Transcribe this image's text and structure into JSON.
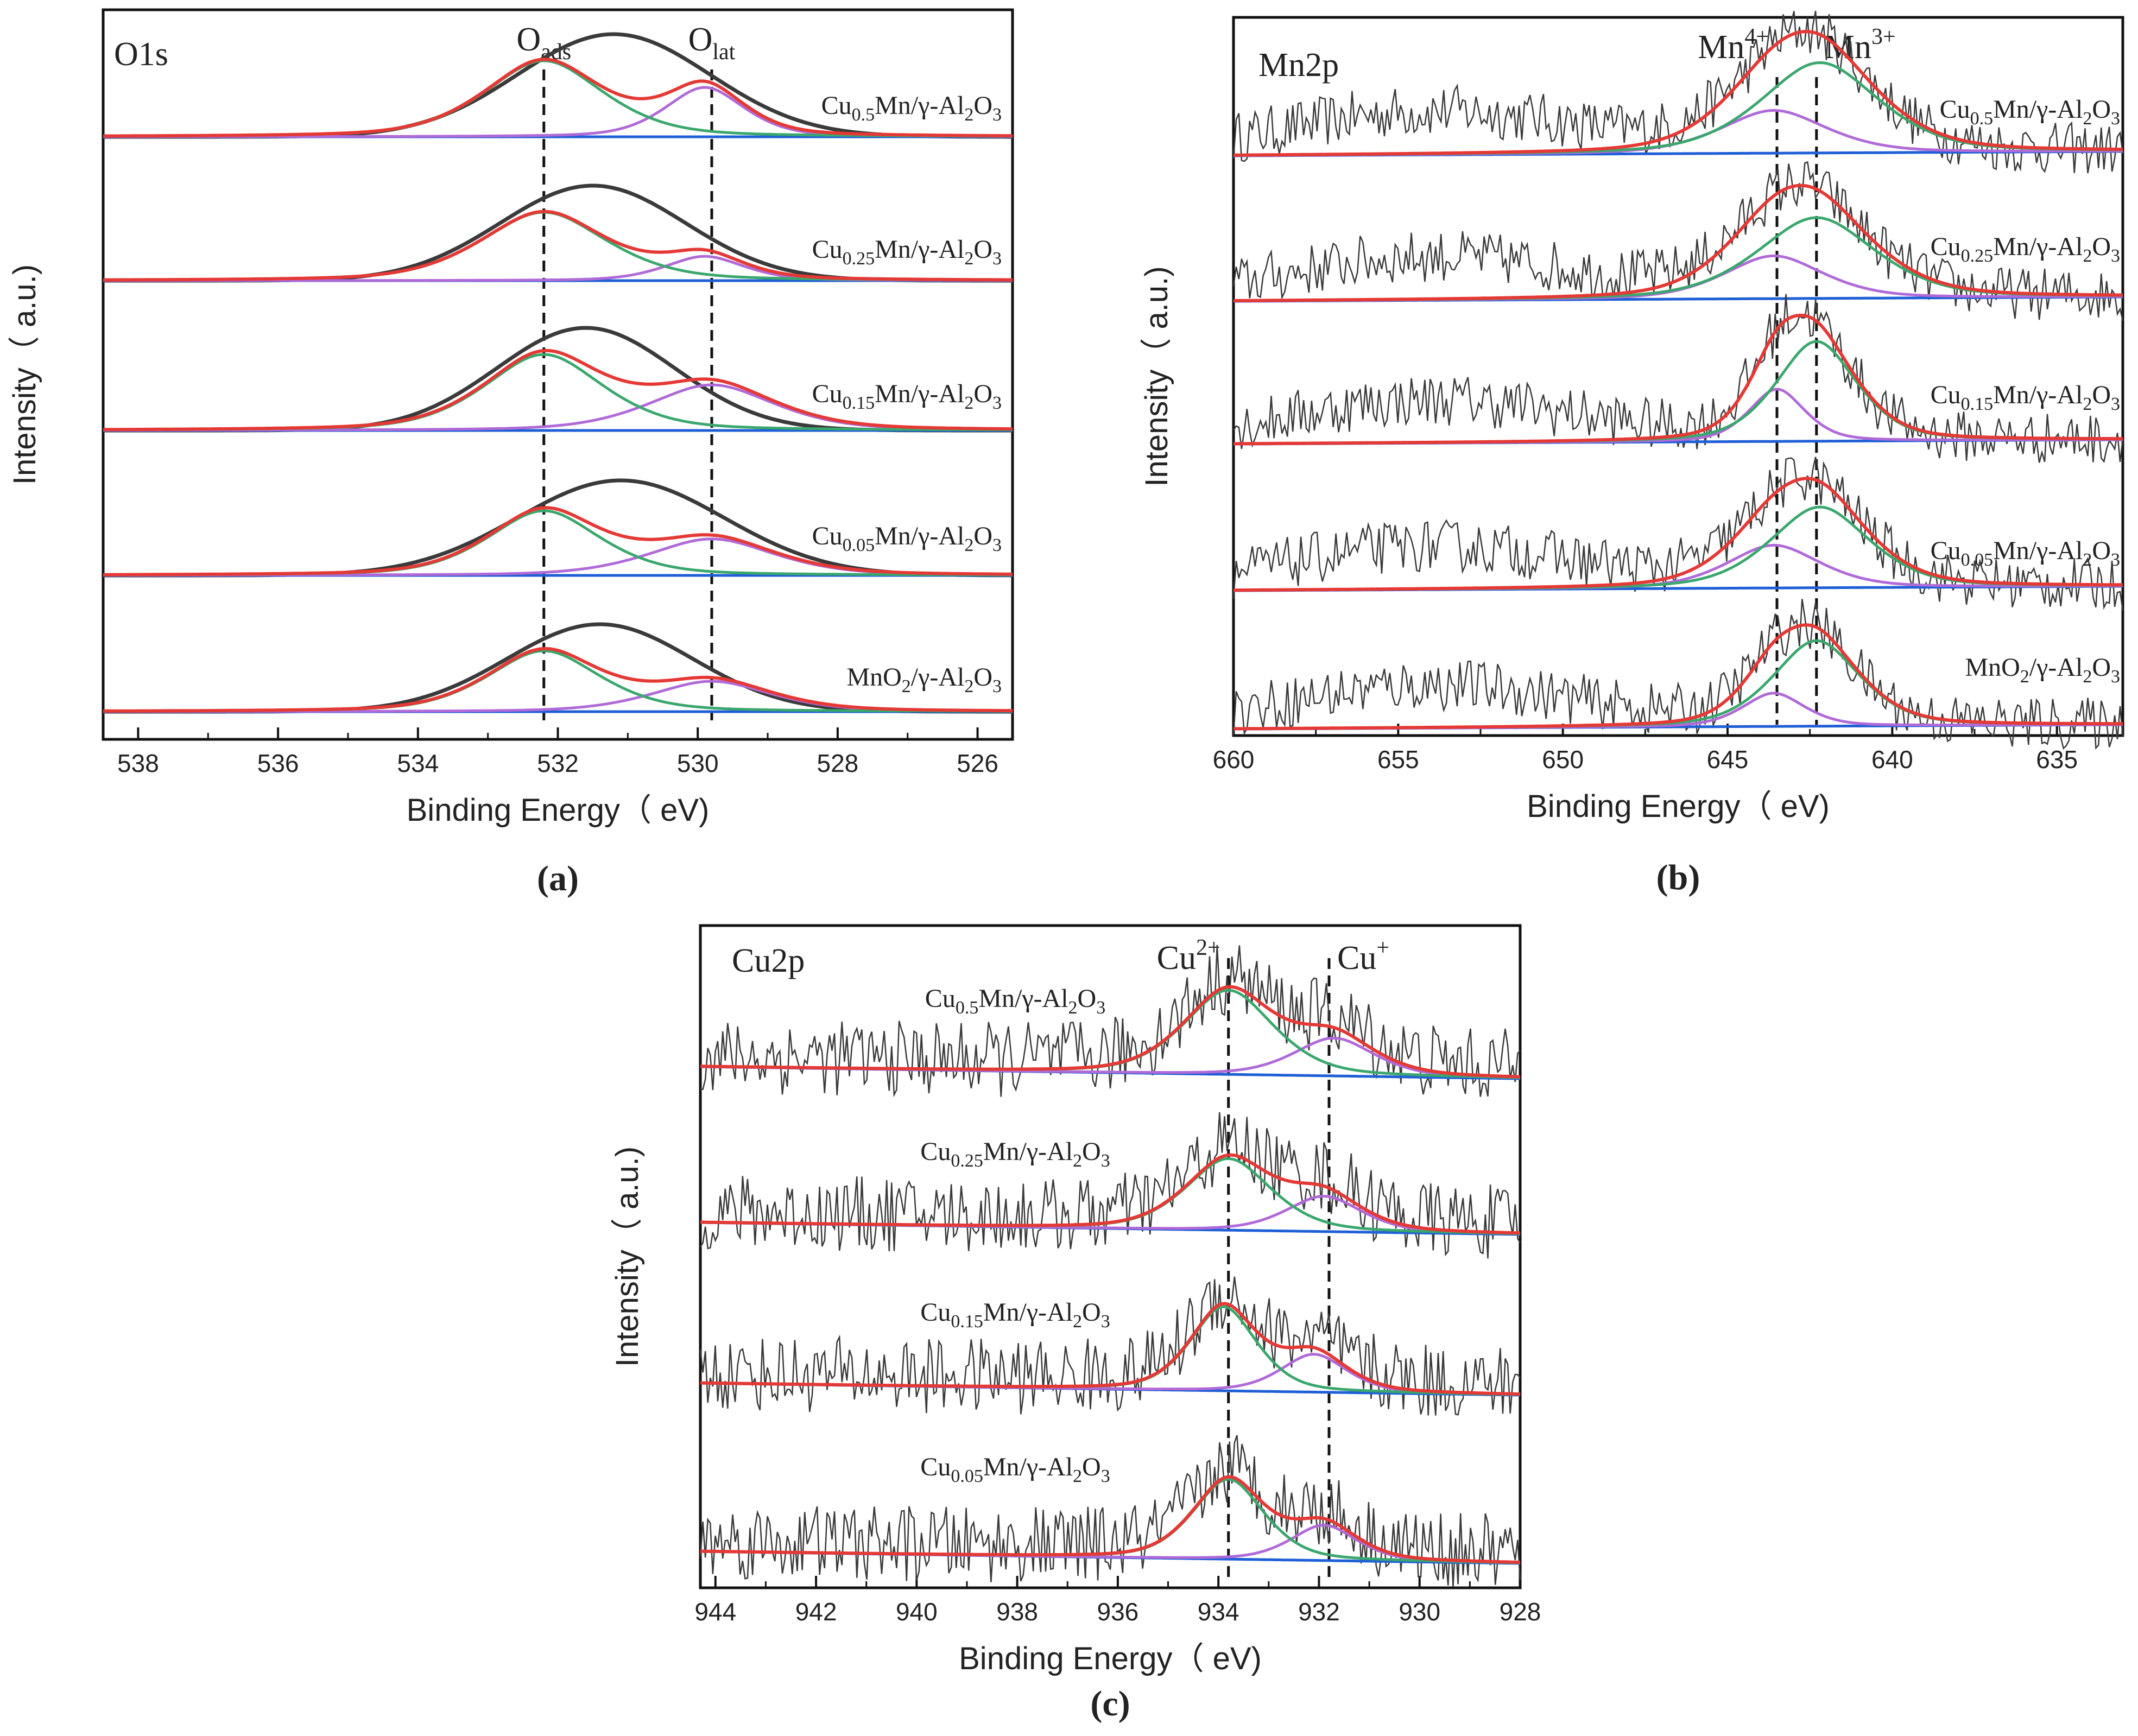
{
  "colors": {
    "measured": "#3a3a3a",
    "envelope": "#e53935",
    "peak1": "#3aa76d",
    "peak2": "#b06ad8",
    "background": "#1f5fd6",
    "frame": "#111111"
  },
  "chart_data": [
    {
      "type": "line",
      "panel_label": "(a)",
      "title": "O1s",
      "xlabel": "Binding Energy（ eV)",
      "ylabel": "Intensity（ a.u.)",
      "xlim": [
        538.5,
        525.5
      ],
      "xticks": [
        "538",
        "536",
        "534",
        "532",
        "530",
        "528",
        "526"
      ],
      "xtick_values": [
        538,
        536,
        534,
        532,
        530,
        528,
        526
      ],
      "reference_lines": [
        {
          "x": 532.2,
          "label_base": "O",
          "label_sub": "ads"
        },
        {
          "x": 529.8,
          "label_base": "O",
          "label_sub": "lat"
        }
      ],
      "series": [
        {
          "name": "Cu0.5Mn/γ-Al2O3",
          "parts": [
            [
              "Cu",
              "n"
            ],
            [
              "0.5",
              "sub"
            ],
            [
              "Mn/γ-Al",
              "n"
            ],
            [
              "2",
              "sub"
            ],
            [
              "O",
              "n"
            ],
            [
              "3",
              "sub"
            ]
          ],
          "measured_center": 531.2,
          "measured_width": 1.35,
          "measured_height": 1.35,
          "peak1": {
            "center": 532.2,
            "width": 0.9,
            "height": 1.0
          },
          "peak2": {
            "center": 529.9,
            "width": 0.6,
            "height": 0.65
          }
        },
        {
          "name": "Cu0.25Mn/γ-Al2O3",
          "parts": [
            [
              "Cu",
              "n"
            ],
            [
              "0.25",
              "sub"
            ],
            [
              "Mn/γ-Al",
              "n"
            ],
            [
              "2",
              "sub"
            ],
            [
              "O",
              "n"
            ],
            [
              "3",
              "sub"
            ]
          ],
          "measured_center": 531.5,
          "measured_width": 1.3,
          "measured_height": 1.25,
          "peak1": {
            "center": 532.2,
            "width": 0.95,
            "height": 0.9
          },
          "peak2": {
            "center": 529.9,
            "width": 0.6,
            "height": 0.32
          }
        },
        {
          "name": "Cu0.15Mn/γ-Al2O3",
          "parts": [
            [
              "Cu",
              "n"
            ],
            [
              "0.15",
              "sub"
            ],
            [
              "Mn/γ-Al",
              "n"
            ],
            [
              "2",
              "sub"
            ],
            [
              "O",
              "n"
            ],
            [
              "3",
              "sub"
            ]
          ],
          "measured_center": 531.6,
          "measured_width": 1.25,
          "measured_height": 1.35,
          "peak1": {
            "center": 532.2,
            "width": 0.9,
            "height": 1.0
          },
          "peak2": {
            "center": 529.8,
            "width": 0.95,
            "height": 0.6
          }
        },
        {
          "name": "Cu0.05Mn/γ-Al2O3",
          "parts": [
            [
              "Cu",
              "n"
            ],
            [
              "0.05",
              "sub"
            ],
            [
              "Mn/γ-Al",
              "n"
            ],
            [
              "2",
              "sub"
            ],
            [
              "O",
              "n"
            ],
            [
              "3",
              "sub"
            ]
          ],
          "measured_center": 531.1,
          "measured_width": 1.45,
          "measured_height": 1.25,
          "peak1": {
            "center": 532.2,
            "width": 0.85,
            "height": 0.85
          },
          "peak2": {
            "center": 529.8,
            "width": 0.95,
            "height": 0.48
          }
        },
        {
          "name": "MnO2/γ-Al2O3",
          "parts": [
            [
              "MnO",
              "n"
            ],
            [
              "2",
              "sub"
            ],
            [
              "/γ-Al",
              "n"
            ],
            [
              "2",
              "sub"
            ],
            [
              "O",
              "n"
            ],
            [
              "3",
              "sub"
            ]
          ],
          "measured_center": 531.4,
          "measured_width": 1.3,
          "measured_height": 1.15,
          "peak1": {
            "center": 532.2,
            "width": 0.85,
            "height": 0.8
          },
          "peak2": {
            "center": 529.8,
            "width": 0.9,
            "height": 0.4
          }
        }
      ]
    },
    {
      "type": "line",
      "panel_label": "(b)",
      "title": "Mn2p",
      "xlabel": "Binding Energy（ eV)",
      "ylabel": "Intensity（ a.u.)",
      "xlim": [
        660,
        633
      ],
      "xticks": [
        "660",
        "655",
        "650",
        "645",
        "640",
        "635"
      ],
      "xtick_values": [
        660,
        655,
        650,
        645,
        640,
        635
      ],
      "reference_lines": [
        {
          "x": 643.5,
          "label_base": "Mn",
          "label_sup": "4+"
        },
        {
          "x": 642.3,
          "label_base": "Mn",
          "label_sup": "3+"
        }
      ],
      "series": [
        {
          "name": "Cu0.5Mn/γ-Al2O3",
          "parts": [
            [
              "Cu",
              "n"
            ],
            [
              "0.5",
              "sub"
            ],
            [
              "Mn/γ-Al",
              "n"
            ],
            [
              "2",
              "sub"
            ],
            [
              "O",
              "n"
            ],
            [
              "3",
              "sub"
            ]
          ],
          "envelope_center": 642.5,
          "peak1": {
            "center": 642.2,
            "width": 1.9,
            "height": 0.95
          },
          "peak2": {
            "center": 643.6,
            "width": 1.7,
            "height": 0.45
          }
        },
        {
          "name": "Cu0.25Mn/γ-Al2O3",
          "parts": [
            [
              "Cu",
              "n"
            ],
            [
              "0.25",
              "sub"
            ],
            [
              "Mn/γ-Al",
              "n"
            ],
            [
              "2",
              "sub"
            ],
            [
              "O",
              "n"
            ],
            [
              "3",
              "sub"
            ]
          ],
          "envelope_center": 642.6,
          "peak1": {
            "center": 642.3,
            "width": 1.9,
            "height": 0.85
          },
          "peak2": {
            "center": 643.6,
            "width": 1.6,
            "height": 0.45
          }
        },
        {
          "name": "Cu0.15Mn/γ-Al2O3",
          "parts": [
            [
              "Cu",
              "n"
            ],
            [
              "0.15",
              "sub"
            ],
            [
              "Mn/γ-Al",
              "n"
            ],
            [
              "2",
              "sub"
            ],
            [
              "O",
              "n"
            ],
            [
              "3",
              "sub"
            ]
          ],
          "envelope_center": 642.4,
          "peak1": {
            "center": 642.3,
            "width": 1.3,
            "height": 1.05
          },
          "peak2": {
            "center": 643.5,
            "width": 0.9,
            "height": 0.55
          }
        },
        {
          "name": "Cu0.05Mn/γ-Al2O3",
          "parts": [
            [
              "Cu",
              "n"
            ],
            [
              "0.05",
              "sub"
            ],
            [
              "Mn/γ-Al",
              "n"
            ],
            [
              "2",
              "sub"
            ],
            [
              "O",
              "n"
            ],
            [
              "3",
              "sub"
            ]
          ],
          "envelope_center": 642.5,
          "peak1": {
            "center": 642.2,
            "width": 1.6,
            "height": 0.85
          },
          "peak2": {
            "center": 643.6,
            "width": 1.5,
            "height": 0.45
          }
        },
        {
          "name": "MnO2/γ-Al2O3",
          "parts": [
            [
              "MnO",
              "n"
            ],
            [
              "2",
              "sub"
            ],
            [
              "/γ-Al",
              "n"
            ],
            [
              "2",
              "sub"
            ],
            [
              "O",
              "n"
            ],
            [
              "3",
              "sub"
            ]
          ],
          "envelope_center": 642.5,
          "peak1": {
            "center": 642.3,
            "width": 1.4,
            "height": 0.9
          },
          "peak2": {
            "center": 643.6,
            "width": 1.0,
            "height": 0.35
          }
        }
      ]
    },
    {
      "type": "line",
      "panel_label": "(c)",
      "title": "Cu2p",
      "xlabel": "Binding Energy（ eV)",
      "ylabel": "Intensity（ a.u.)",
      "xlim": [
        944.3,
        928
      ],
      "xticks": [
        "944",
        "942",
        "940",
        "938",
        "936",
        "934",
        "932",
        "930",
        "928"
      ],
      "xtick_values": [
        944,
        942,
        940,
        938,
        936,
        934,
        932,
        930,
        928
      ],
      "reference_lines": [
        {
          "x": 933.8,
          "label_base": "Cu",
          "label_sup": "2+"
        },
        {
          "x": 931.8,
          "label_base": "Cu",
          "label_sup": "+"
        }
      ],
      "series": [
        {
          "name": "Cu0.5Mn/γ-Al2O3",
          "parts": [
            [
              "Cu",
              "n"
            ],
            [
              "0.5",
              "sub"
            ],
            [
              "Mn/γ-Al",
              "n"
            ],
            [
              "2",
              "sub"
            ],
            [
              "O",
              "n"
            ],
            [
              "3",
              "sub"
            ]
          ],
          "peak1": {
            "center": 933.8,
            "width": 0.95,
            "height": 1.0
          },
          "peak2": {
            "center": 931.7,
            "width": 0.85,
            "height": 0.45
          }
        },
        {
          "name": "Cu0.25Mn/γ-Al2O3",
          "parts": [
            [
              "Cu",
              "n"
            ],
            [
              "0.25",
              "sub"
            ],
            [
              "Mn/γ-Al",
              "n"
            ],
            [
              "2",
              "sub"
            ],
            [
              "O",
              "n"
            ],
            [
              "3",
              "sub"
            ]
          ],
          "peak1": {
            "center": 933.8,
            "width": 0.9,
            "height": 0.85
          },
          "peak2": {
            "center": 931.9,
            "width": 0.8,
            "height": 0.42
          }
        },
        {
          "name": "Cu0.15Mn/γ-Al2O3",
          "parts": [
            [
              "Cu",
              "n"
            ],
            [
              "0.15",
              "sub"
            ],
            [
              "Mn/γ-Al",
              "n"
            ],
            [
              "2",
              "sub"
            ],
            [
              "O",
              "n"
            ],
            [
              "3",
              "sub"
            ]
          ],
          "peak1": {
            "center": 933.9,
            "width": 0.7,
            "height": 1.0
          },
          "peak2": {
            "center": 932.1,
            "width": 0.7,
            "height": 0.45
          }
        },
        {
          "name": "Cu0.05Mn/γ-Al2O3",
          "parts": [
            [
              "Cu",
              "n"
            ],
            [
              "0.05",
              "sub"
            ],
            [
              "Mn/γ-Al",
              "n"
            ],
            [
              "2",
              "sub"
            ],
            [
              "O",
              "n"
            ],
            [
              "3",
              "sub"
            ]
          ],
          "peak1": {
            "center": 933.8,
            "width": 0.75,
            "height": 0.95
          },
          "peak2": {
            "center": 931.9,
            "width": 0.7,
            "height": 0.42
          }
        }
      ]
    }
  ]
}
